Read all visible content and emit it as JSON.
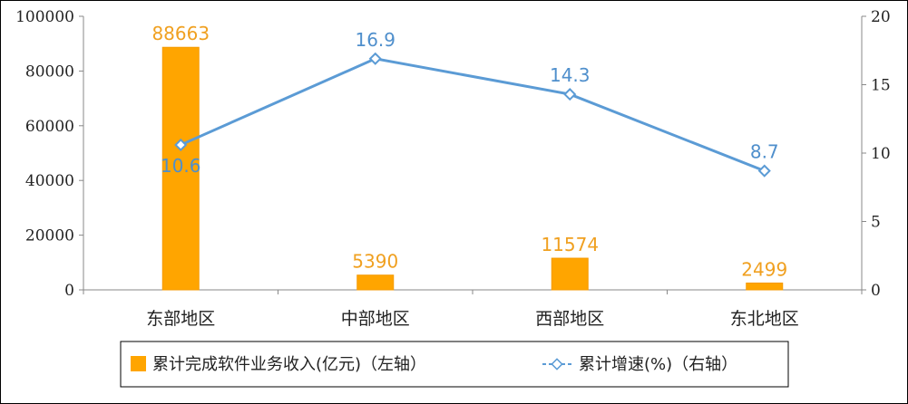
{
  "chart_data": {
    "type": "bar",
    "categories": [
      "东部地区",
      "中部地区",
      "西部地区",
      "东北地区"
    ],
    "series": [
      {
        "name": "累计完成软件业务收入(亿元)（左轴）",
        "type": "bar",
        "axis": "left",
        "values": [
          88663,
          5390,
          11574,
          2499
        ],
        "labels": [
          "88663",
          "5390",
          "11574",
          "2499"
        ]
      },
      {
        "name": "累计增速(%)（右轴）",
        "type": "line",
        "axis": "right",
        "values": [
          10.6,
          16.9,
          14.3,
          8.7
        ],
        "labels": [
          "10.6",
          "16.9",
          "14.3",
          "8.7"
        ]
      }
    ],
    "left_axis": {
      "ylim": [
        0,
        100000
      ],
      "ticks": [
        "0",
        "20000",
        "40000",
        "60000",
        "80000",
        "100000"
      ]
    },
    "right_axis": {
      "ylim": [
        0,
        20
      ],
      "ticks": [
        "0",
        "5",
        "10",
        "15",
        "20"
      ]
    },
    "legend_position": "bottom",
    "grid": false,
    "colors": {
      "bar": "#FFA500",
      "bar_edge": "#F59A00",
      "line": "#5B9BD5",
      "line_label": "#4F8FCC",
      "bar_label": "#F0A020"
    }
  }
}
